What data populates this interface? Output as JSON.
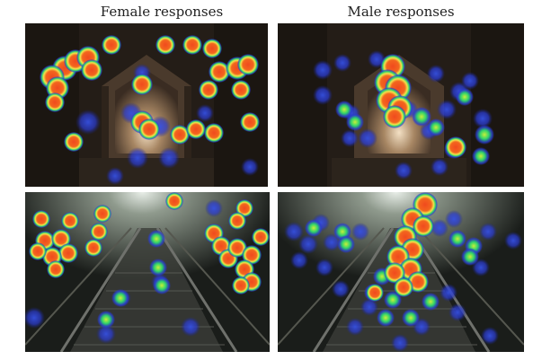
{
  "figure": {
    "column_titles": [
      "Female responses",
      "Male responses"
    ]
  },
  "panels": [
    {
      "name": "female-covered-bridge",
      "scene": "night covered bridge with lit interior"
    },
    {
      "name": "male-covered-bridge",
      "scene": "night covered bridge with lit interior"
    },
    {
      "name": "female-stairway",
      "scene": "night stairway with handrails and lamp glow"
    },
    {
      "name": "male-stairway",
      "scene": "night stairway with handrails and lamp glow"
    }
  ],
  "heatmap_colors": {
    "low": "#2a3bd0",
    "mid": "#2fd36a",
    "high_outer": "#f2e34a",
    "high_core": "#f04a1e"
  }
}
